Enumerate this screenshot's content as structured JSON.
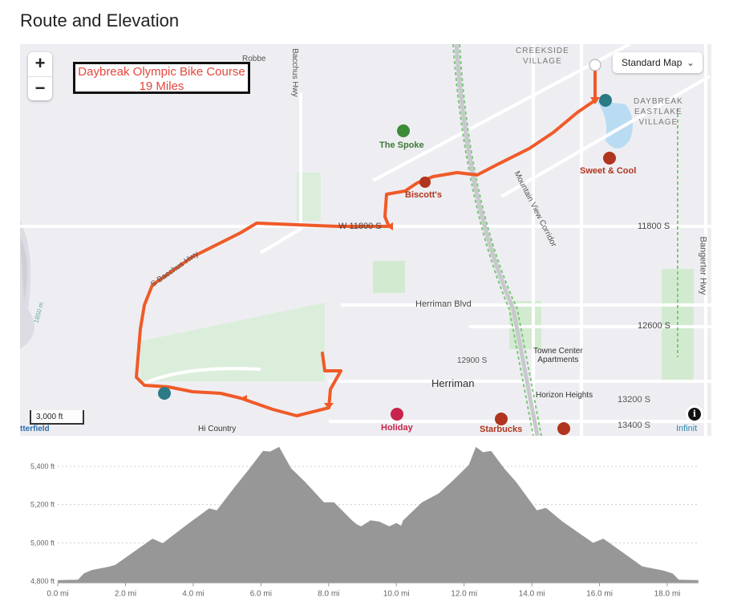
{
  "page_title": "Route and Elevation",
  "map": {
    "zoom_in": "+",
    "zoom_out": "−",
    "course_title": "Daybreak Olympic Bike Course",
    "course_distance": "19 Miles",
    "map_type": "Standard Map",
    "scale": "3,000 ft",
    "info": "i",
    "route_color": "#f05a28",
    "labels": {
      "robbe": "Robbe",
      "bacchus_top": "Bacchus Hwy",
      "creekside_1": "CREEKSIDE",
      "creekside_2": "VILLAGE",
      "daybreak_1": "DAYBREAK",
      "daybreak_2": "EASTLAKE",
      "daybreak_3": "VILLAGE",
      "w11800": "W 11800 S",
      "s11800": "11800 S",
      "bangerter": "Bangerter Hwy",
      "s_bacchus": "S Bacchus Hwy",
      "mvc": "Mountain View Corridor",
      "herriman_blvd": "Herriman Blvd",
      "s12600": "12600 S",
      "s12900": "12900 S",
      "towne_1": "Towne Center",
      "towne_2": "Apartments",
      "herriman": "Herriman",
      "horizon": "Horizon Heights",
      "s13200": "13200 S",
      "s13400": "13400 S",
      "hi_country": "Hi Country",
      "butterfield": "tterfield",
      "infinity": "Infinit",
      "contour": "1850 m"
    },
    "pois": {
      "the_spoke": "The Spoke",
      "biscotts": "Biscott's",
      "sweet_cool": "Sweet & Cool",
      "starbucks": "Starbucks",
      "holiday": "Holiday"
    }
  },
  "chart_data": {
    "type": "area",
    "xlabel": "",
    "ylabel": "",
    "xlim": [
      0,
      18.92
    ],
    "ylim": [
      4790,
      5510
    ],
    "grid": "horizontal dotted",
    "x_ticks": [
      "0.0 mi",
      "2.0 mi",
      "4.0 mi",
      "6.0 mi",
      "8.0 mi",
      "10.0 mi",
      "12.0 mi",
      "14.0 mi",
      "16.0 mi",
      "18.0 mi"
    ],
    "y_ticks": [
      "4,800 ft",
      "5,000 ft",
      "5,200 ft",
      "5,400 ft"
    ],
    "fill_color": "#979797",
    "x": [
      0,
      0.6,
      0.77,
      1.0,
      1.5,
      1.7,
      2.3,
      2.8,
      3.1,
      3.85,
      4.47,
      4.7,
      5.23,
      5.64,
      6.06,
      6.27,
      6.54,
      6.89,
      7.3,
      7.86,
      8.16,
      8.69,
      8.83,
      8.96,
      9.24,
      9.5,
      9.79,
      10.0,
      10.14,
      10.2,
      10.76,
      11.25,
      11.66,
      12.14,
      12.35,
      12.56,
      12.8,
      13.18,
      13.53,
      14.15,
      14.42,
      14.91,
      15.81,
      16.11,
      16.29,
      17.26,
      17.88,
      18.16,
      18.34,
      18.92
    ],
    "elevation_ft": [
      4805,
      4807,
      4840,
      4858,
      4875,
      4885,
      4960,
      5022,
      4998,
      5100,
      5180,
      5170,
      5293,
      5383,
      5481,
      5477,
      5502,
      5390,
      5320,
      5212,
      5212,
      5118,
      5097,
      5086,
      5118,
      5111,
      5086,
      5104,
      5090,
      5118,
      5212,
      5258,
      5324,
      5407,
      5502,
      5474,
      5481,
      5390,
      5320,
      5170,
      5183,
      5111,
      5000,
      5022,
      5000,
      4877,
      4856,
      4840,
      4807,
      4805
    ]
  }
}
